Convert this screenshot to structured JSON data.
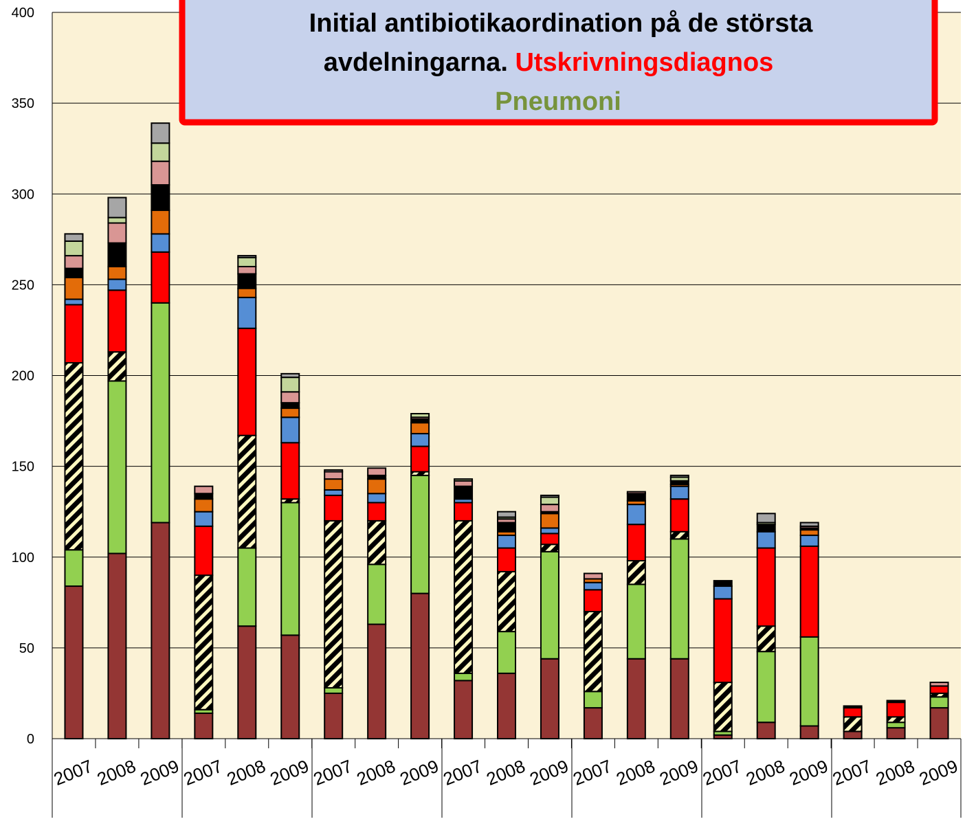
{
  "chart_data": {
    "type": "stacked_bar",
    "title_parts": [
      {
        "text": "Initial antibiotikaordination på de största",
        "color": "#000000"
      },
      {
        "text": "avdelningarna.",
        "color": "#000000"
      },
      {
        "text": "Utskrivningsdiagnos",
        "color": "#ff0000"
      },
      {
        "text": "Pneumoni",
        "color": "#77933c"
      }
    ],
    "categories": [
      "2007",
      "2008",
      "2009",
      "2007",
      "2008",
      "2009",
      "2007",
      "2008",
      "2009",
      "2007",
      "2008",
      "2009",
      "2007",
      "2008",
      "2009",
      "2007",
      "2008",
      "2009",
      "2007",
      "2008",
      "2009"
    ],
    "series": [
      {
        "color": "#943634",
        "values": [
          84,
          102,
          119,
          14,
          62,
          57,
          25,
          63,
          80,
          32,
          36,
          44,
          17,
          44,
          44,
          2,
          9,
          7,
          4,
          6,
          17
        ]
      },
      {
        "color": "#92d050",
        "values": [
          20,
          95,
          121,
          2,
          43,
          73,
          3,
          33,
          65,
          4,
          23,
          59,
          9,
          41,
          66,
          2,
          39,
          49,
          0,
          3,
          6
        ]
      },
      {
        "color": "#000000",
        "hatch": "#fff8c0",
        "values": [
          103,
          16,
          0,
          74,
          62,
          2,
          92,
          24,
          2,
          84,
          33,
          4,
          44,
          13,
          4,
          27,
          14,
          0,
          8,
          3,
          2
        ]
      },
      {
        "color": "#ff0000",
        "values": [
          32,
          34,
          28,
          27,
          59,
          31,
          14,
          10,
          14,
          10,
          13,
          6,
          12,
          20,
          18,
          46,
          43,
          50,
          5,
          8,
          4
        ]
      },
      {
        "color": "#558ed5",
        "values": [
          3,
          6,
          10,
          8,
          17,
          14,
          3,
          5,
          7,
          2,
          7,
          3,
          4,
          11,
          7,
          7,
          9,
          6,
          0,
          0,
          0
        ]
      },
      {
        "color": "#e36c09",
        "values": [
          12,
          7,
          13,
          7,
          5,
          5,
          6,
          8,
          6,
          0,
          2,
          8,
          2,
          2,
          1,
          0,
          0,
          3,
          0,
          0,
          0
        ]
      },
      {
        "color": "#000000",
        "values": [
          5,
          13,
          14,
          3,
          8,
          3,
          0,
          2,
          2,
          7,
          5,
          1,
          0,
          4,
          2,
          3,
          4,
          1,
          1,
          1,
          0
        ]
      },
      {
        "color": "#d99694",
        "values": [
          7,
          11,
          13,
          4,
          4,
          6,
          4,
          4,
          1,
          3,
          2,
          4,
          3,
          1,
          0,
          0,
          0,
          1,
          0,
          0,
          2
        ]
      },
      {
        "color": "#c3d69b",
        "values": [
          8,
          3,
          10,
          0,
          5,
          8,
          0,
          0,
          2,
          1,
          1,
          4,
          0,
          0,
          2,
          0,
          1,
          0,
          0,
          0,
          0
        ]
      },
      {
        "color": "#a6a6a6",
        "values": [
          4,
          11,
          11,
          0,
          1,
          2,
          1,
          0,
          0,
          0,
          3,
          1,
          0,
          0,
          1,
          0,
          5,
          2,
          0,
          0,
          0
        ]
      }
    ],
    "ylim": [
      0,
      400
    ],
    "yticks": [
      0,
      50,
      100,
      150,
      200,
      250,
      300,
      350,
      400
    ],
    "grid": true
  }
}
